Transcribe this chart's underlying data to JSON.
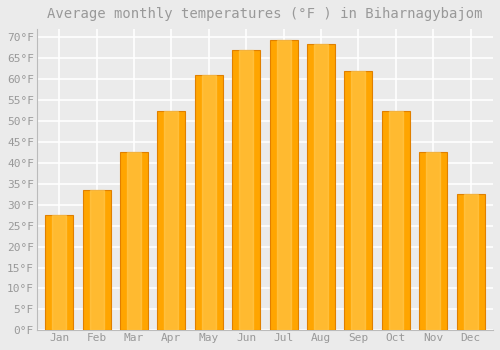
{
  "title": "Average monthly temperatures (°F ) in Biharnagybajom",
  "months": [
    "Jan",
    "Feb",
    "Mar",
    "Apr",
    "May",
    "Jun",
    "Jul",
    "Aug",
    "Sep",
    "Oct",
    "Nov",
    "Dec"
  ],
  "values": [
    27.5,
    33.5,
    42.5,
    52.5,
    61.0,
    67.0,
    69.5,
    68.5,
    62.0,
    52.5,
    42.5,
    32.5
  ],
  "bar_color_main": "#FFA500",
  "bar_color_light": "#FFD060",
  "bar_color_dark": "#E08000",
  "background_color": "#EBEBEB",
  "grid_color": "#FFFFFF",
  "ylim": [
    0,
    72
  ],
  "ytick_step": 5,
  "title_fontsize": 10,
  "tick_fontsize": 8,
  "font_color": "#999999",
  "bar_width": 0.75
}
